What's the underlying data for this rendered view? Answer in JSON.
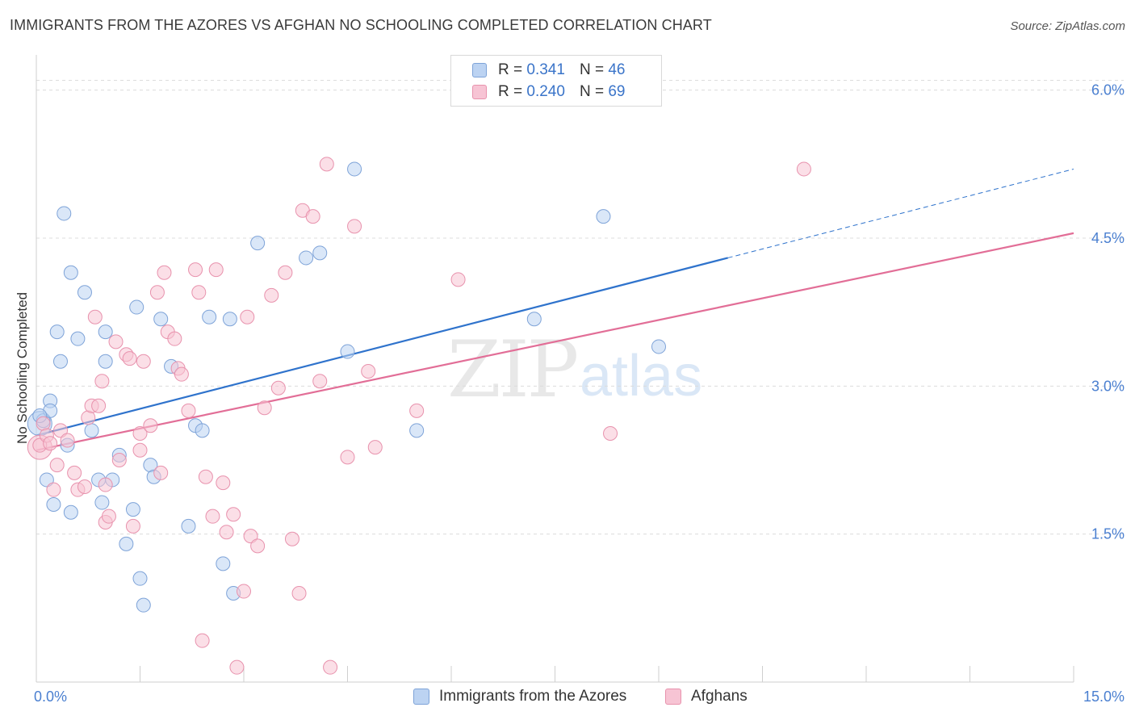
{
  "title": "IMMIGRANTS FROM THE AZORES VS AFGHAN NO SCHOOLING COMPLETED CORRELATION CHART",
  "source": "Source: ZipAtlas.com",
  "watermark": {
    "zip": "ZIP",
    "atlas": "atlas"
  },
  "legend": {
    "r_label": "R =",
    "n_label": "N =",
    "series": [
      {
        "r": "0.341",
        "n": "46"
      },
      {
        "r": "0.240",
        "n": "69"
      }
    ]
  },
  "bottom_legend": [
    "Immigrants from the Azores",
    "Afghans"
  ],
  "colors": {
    "blue_fill": "#bcd3f2",
    "blue_stroke": "#7ea3d8",
    "blue_line": "#2f73cc",
    "pink_fill": "#f7c4d4",
    "pink_stroke": "#e892ad",
    "pink_line": "#e26e97",
    "tick_text": "#4a7fd0",
    "grid": "#dcdcdc"
  },
  "chart_data": {
    "type": "scatter",
    "title": "IMMIGRANTS FROM THE AZORES VS AFGHAN NO SCHOOLING COMPLETED CORRELATION CHART",
    "xlabel": "",
    "ylabel": "No Schooling Completed",
    "xlim": [
      0,
      15
    ],
    "ylim": [
      0,
      6.3
    ],
    "x_tick_labels": [
      "0.0%",
      "15.0%"
    ],
    "y_ticks": [
      1.5,
      3.0,
      4.5,
      6.0
    ],
    "y_tick_labels": [
      "1.5%",
      "3.0%",
      "4.5%",
      "6.0%"
    ],
    "grid": "horizontal dashed",
    "legend_position": "top-center",
    "series": [
      {
        "name": "Immigrants from the Azores",
        "color": "#bcd3f2",
        "trend": {
          "x": [
            0,
            10
          ],
          "y": [
            2.5,
            4.3
          ],
          "dashed_to": [
            15,
            5.2
          ]
        },
        "points": [
          [
            0.1,
            2.65
          ],
          [
            0.2,
            2.85
          ],
          [
            0.2,
            2.75
          ],
          [
            0.15,
            2.05
          ],
          [
            0.25,
            1.8
          ],
          [
            0.3,
            3.55
          ],
          [
            0.35,
            3.25
          ],
          [
            0.4,
            4.75
          ],
          [
            0.45,
            2.4
          ],
          [
            0.5,
            1.72
          ],
          [
            0.5,
            4.15
          ],
          [
            0.6,
            3.48
          ],
          [
            0.7,
            3.95
          ],
          [
            0.8,
            2.55
          ],
          [
            0.9,
            2.05
          ],
          [
            0.95,
            1.82
          ],
          [
            1.0,
            3.55
          ],
          [
            1.0,
            3.25
          ],
          [
            1.1,
            2.05
          ],
          [
            1.2,
            2.3
          ],
          [
            1.3,
            1.4
          ],
          [
            1.4,
            1.75
          ],
          [
            1.45,
            3.8
          ],
          [
            1.5,
            1.05
          ],
          [
            1.55,
            0.78
          ],
          [
            1.65,
            2.2
          ],
          [
            1.7,
            2.08
          ],
          [
            1.8,
            3.68
          ],
          [
            1.95,
            3.2
          ],
          [
            2.2,
            1.58
          ],
          [
            2.3,
            2.6
          ],
          [
            2.4,
            2.55
          ],
          [
            2.5,
            3.7
          ],
          [
            2.7,
            1.2
          ],
          [
            2.8,
            3.68
          ],
          [
            2.85,
            0.9
          ],
          [
            3.2,
            4.45
          ],
          [
            3.9,
            4.3
          ],
          [
            4.1,
            4.35
          ],
          [
            4.5,
            3.35
          ],
          [
            4.6,
            5.2
          ],
          [
            5.5,
            2.55
          ],
          [
            7.2,
            3.68
          ],
          [
            8.2,
            4.72
          ],
          [
            9.0,
            3.4
          ],
          [
            0.05,
            2.7
          ]
        ]
      },
      {
        "name": "Afghans",
        "color": "#f7c4d4",
        "trend": {
          "x": [
            0,
            15
          ],
          "y": [
            2.35,
            4.55
          ]
        },
        "points": [
          [
            0.05,
            2.4
          ],
          [
            0.1,
            2.62
          ],
          [
            0.15,
            2.5
          ],
          [
            0.2,
            2.42
          ],
          [
            0.25,
            1.95
          ],
          [
            0.3,
            2.2
          ],
          [
            0.35,
            2.55
          ],
          [
            0.45,
            2.45
          ],
          [
            0.55,
            2.12
          ],
          [
            0.6,
            1.95
          ],
          [
            0.7,
            1.98
          ],
          [
            0.75,
            2.68
          ],
          [
            0.8,
            2.8
          ],
          [
            0.85,
            3.7
          ],
          [
            0.9,
            2.8
          ],
          [
            0.95,
            3.05
          ],
          [
            1.0,
            1.62
          ],
          [
            1.05,
            1.68
          ],
          [
            1.15,
            3.45
          ],
          [
            1.2,
            2.25
          ],
          [
            1.3,
            3.32
          ],
          [
            1.35,
            3.28
          ],
          [
            1.4,
            1.58
          ],
          [
            1.5,
            2.52
          ],
          [
            1.5,
            2.35
          ],
          [
            1.55,
            3.25
          ],
          [
            1.65,
            2.6
          ],
          [
            1.75,
            3.95
          ],
          [
            1.8,
            2.12
          ],
          [
            1.85,
            4.15
          ],
          [
            1.9,
            3.55
          ],
          [
            2.0,
            3.48
          ],
          [
            2.05,
            3.18
          ],
          [
            2.1,
            3.12
          ],
          [
            2.2,
            2.75
          ],
          [
            2.3,
            4.18
          ],
          [
            2.35,
            3.95
          ],
          [
            2.4,
            0.42
          ],
          [
            2.45,
            2.08
          ],
          [
            2.55,
            1.68
          ],
          [
            2.6,
            4.18
          ],
          [
            2.7,
            2.02
          ],
          [
            2.75,
            1.52
          ],
          [
            2.85,
            1.7
          ],
          [
            2.9,
            0.15
          ],
          [
            3.0,
            0.92
          ],
          [
            3.05,
            3.7
          ],
          [
            3.1,
            1.48
          ],
          [
            3.2,
            1.38
          ],
          [
            3.3,
            2.78
          ],
          [
            3.4,
            3.92
          ],
          [
            3.5,
            2.98
          ],
          [
            3.6,
            4.15
          ],
          [
            3.7,
            1.45
          ],
          [
            3.8,
            0.9
          ],
          [
            3.85,
            4.78
          ],
          [
            4.0,
            4.72
          ],
          [
            4.1,
            3.05
          ],
          [
            4.2,
            5.25
          ],
          [
            4.25,
            0.15
          ],
          [
            4.5,
            2.28
          ],
          [
            4.6,
            4.62
          ],
          [
            4.8,
            3.15
          ],
          [
            4.9,
            2.38
          ],
          [
            5.5,
            2.75
          ],
          [
            6.1,
            4.08
          ],
          [
            8.3,
            2.52
          ],
          [
            11.1,
            5.2
          ],
          [
            1.0,
            2.0
          ]
        ]
      }
    ]
  }
}
